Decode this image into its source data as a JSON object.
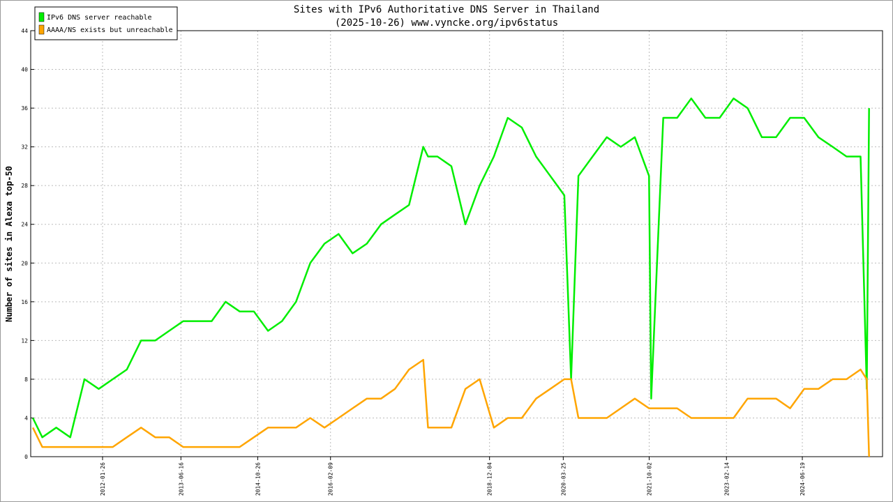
{
  "chart_data": {
    "type": "line",
    "title": "Sites with IPv6 Authoritative DNS Server in Thailand",
    "subtitle": "(2025-10-26) www.vyncke.org/ipv6status",
    "y_label": "Number of sites in Alexa top-50",
    "x": [
      "2010-11-01",
      "2011-01-01",
      "2011-04-01",
      "2011-07-01",
      "2011-10-01",
      "2012-01-01",
      "2012-04-01",
      "2012-07-01",
      "2012-10-01",
      "2013-01-01",
      "2013-04-01",
      "2013-07-01",
      "2013-10-01",
      "2014-01-01",
      "2014-04-01",
      "2014-07-01",
      "2014-10-01",
      "2015-01-01",
      "2015-04-01",
      "2015-07-01",
      "2015-10-01",
      "2016-01-01",
      "2016-04-01",
      "2016-07-01",
      "2016-10-01",
      "2017-01-01",
      "2017-04-01",
      "2017-07-01",
      "2017-10-01",
      "2017-11-01",
      "2018-01-01",
      "2018-04-01",
      "2018-07-01",
      "2018-10-01",
      "2019-01-01",
      "2019-04-01",
      "2019-07-01",
      "2019-10-01",
      "2020-01-01",
      "2020-04-01",
      "2020-05-15",
      "2020-07-01",
      "2020-10-01",
      "2021-01-01",
      "2021-04-01",
      "2021-07-01",
      "2021-10-01",
      "2021-10-15",
      "2022-01-01",
      "2022-04-01",
      "2022-07-01",
      "2022-10-01",
      "2023-01-01",
      "2023-04-01",
      "2023-07-01",
      "2023-10-01",
      "2024-01-01",
      "2024-04-01",
      "2024-07-01",
      "2024-10-01",
      "2025-01-01",
      "2025-04-01",
      "2025-07-01",
      "2025-08-10",
      "2025-08-25"
    ],
    "series": [
      {
        "name": "IPv6 DNS server reachable",
        "color": "#00ee00",
        "values": [
          4,
          2,
          3,
          2,
          8,
          7,
          8,
          9,
          12,
          12,
          13,
          14,
          14,
          14,
          16,
          15,
          15,
          13,
          14,
          16,
          20,
          22,
          23,
          21,
          22,
          24,
          25,
          26,
          32,
          31,
          31,
          30,
          24,
          28,
          31,
          35,
          34,
          31,
          29,
          27,
          8,
          29,
          31,
          33,
          32,
          33,
          29,
          6,
          35,
          35,
          37,
          35,
          35,
          37,
          36,
          33,
          33,
          35,
          35,
          33,
          32,
          31,
          31,
          7,
          36
        ]
      },
      {
        "name": "AAAA/NS exists but unreachable",
        "color": "#ffa500",
        "values": [
          3,
          1,
          1,
          1,
          1,
          1,
          1,
          2,
          3,
          2,
          2,
          1,
          1,
          1,
          1,
          1,
          2,
          3,
          3,
          3,
          4,
          3,
          4,
          5,
          6,
          6,
          7,
          9,
          10,
          3,
          3,
          3,
          7,
          8,
          3,
          4,
          4,
          6,
          7,
          8,
          8,
          4,
          4,
          4,
          5,
          6,
          5,
          5,
          5,
          5,
          4,
          4,
          4,
          4,
          6,
          6,
          6,
          5,
          7,
          7,
          8,
          8,
          9,
          8,
          0
        ]
      }
    ],
    "xlim": [
      "2010-10-18",
      "2025-11-20"
    ],
    "xticks": [
      "2012-01-26",
      "2013-06-16",
      "2014-10-26",
      "2016-02-09",
      "2018-12-04",
      "2020-03-25",
      "2021-10-02",
      "2023-02-14",
      "2024-06-19"
    ],
    "ylim": [
      0,
      44
    ],
    "yticks": [
      0,
      4,
      8,
      12,
      16,
      20,
      24,
      28,
      32,
      36,
      40,
      44
    ],
    "grid": true,
    "legend": "top-left"
  }
}
